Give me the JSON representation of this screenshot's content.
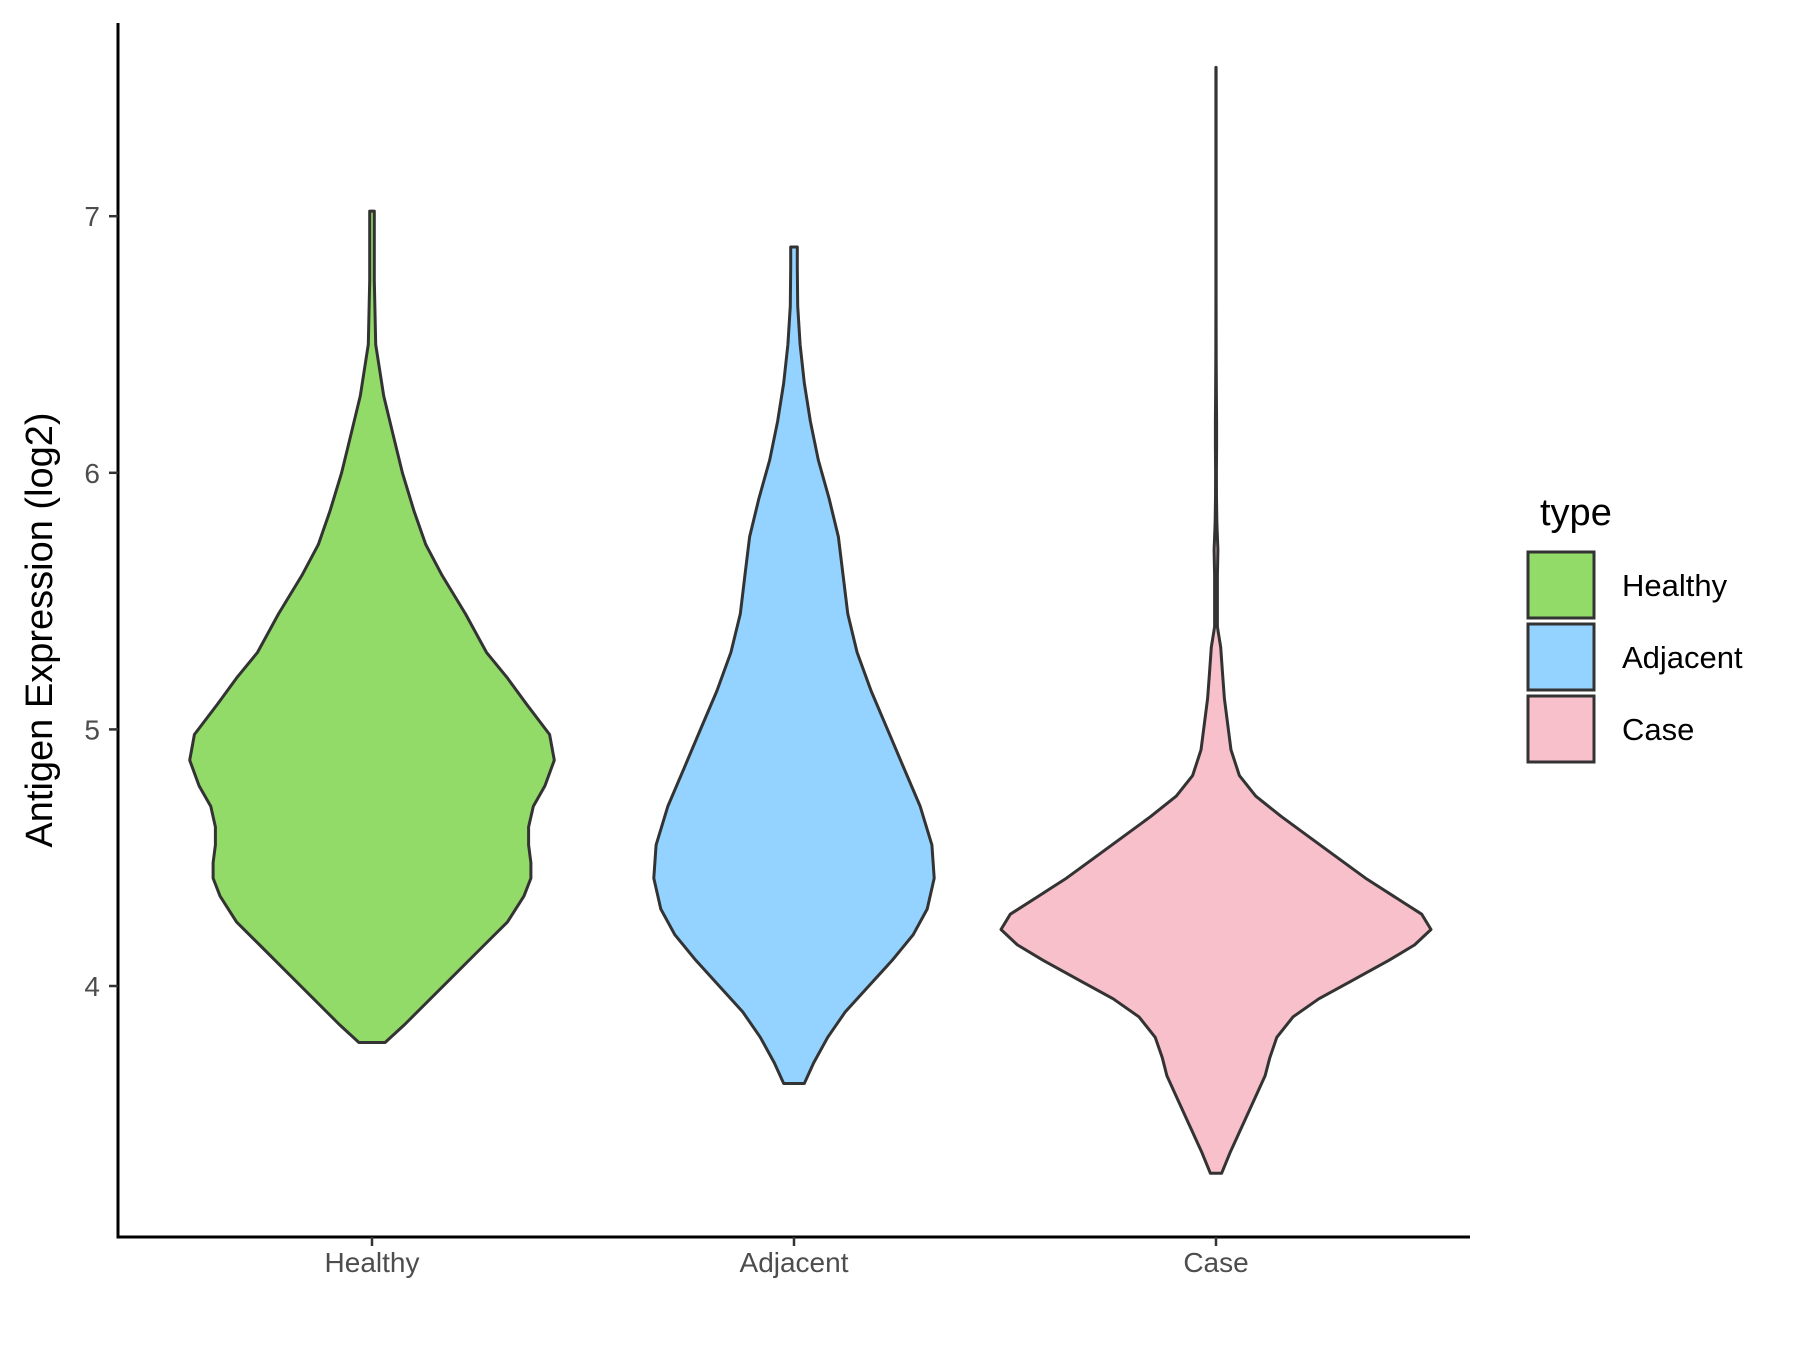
{
  "chart_data": {
    "type": "violin",
    "title": "",
    "xlabel": "",
    "ylabel": "Antigen Expression (log2)",
    "categories": [
      "Healthy",
      "Adjacent",
      "Case"
    ],
    "yticks": [
      4,
      5,
      6,
      7
    ],
    "ylim": [
      3.05,
      7.8
    ],
    "grid": false,
    "legend": {
      "title": "type",
      "position": "right",
      "entries": [
        {
          "label": "Healthy",
          "color": "#93db69"
        },
        {
          "label": "Adjacent",
          "color": "#94d3ff"
        },
        {
          "label": "Case",
          "color": "#f7c0cb"
        }
      ]
    },
    "series": [
      {
        "category": "Healthy",
        "color": "#93db69",
        "density": [
          [
            3.78,
            0.028
          ],
          [
            3.85,
            0.07
          ],
          [
            3.95,
            0.125
          ],
          [
            4.05,
            0.18
          ],
          [
            4.15,
            0.235
          ],
          [
            4.25,
            0.29
          ],
          [
            4.35,
            0.325
          ],
          [
            4.42,
            0.34
          ],
          [
            4.48,
            0.34
          ],
          [
            4.55,
            0.335
          ],
          [
            4.62,
            0.335
          ],
          [
            4.7,
            0.345
          ],
          [
            4.78,
            0.37
          ],
          [
            4.88,
            0.39
          ],
          [
            4.98,
            0.38
          ],
          [
            5.1,
            0.33
          ],
          [
            5.2,
            0.29
          ],
          [
            5.3,
            0.245
          ],
          [
            5.45,
            0.2
          ],
          [
            5.6,
            0.15
          ],
          [
            5.72,
            0.115
          ],
          [
            5.85,
            0.09
          ],
          [
            6.0,
            0.065
          ],
          [
            6.15,
            0.045
          ],
          [
            6.3,
            0.025
          ],
          [
            6.5,
            0.008
          ],
          [
            6.75,
            0.005
          ],
          [
            7.02,
            0.005
          ]
        ]
      },
      {
        "category": "Adjacent",
        "color": "#94d3ff",
        "density": [
          [
            3.62,
            0.022
          ],
          [
            3.7,
            0.042
          ],
          [
            3.8,
            0.072
          ],
          [
            3.9,
            0.11
          ],
          [
            4.0,
            0.16
          ],
          [
            4.1,
            0.21
          ],
          [
            4.2,
            0.255
          ],
          [
            4.3,
            0.285
          ],
          [
            4.42,
            0.3
          ],
          [
            4.55,
            0.295
          ],
          [
            4.7,
            0.27
          ],
          [
            4.85,
            0.235
          ],
          [
            5.0,
            0.2
          ],
          [
            5.15,
            0.165
          ],
          [
            5.3,
            0.135
          ],
          [
            5.45,
            0.115
          ],
          [
            5.6,
            0.105
          ],
          [
            5.75,
            0.095
          ],
          [
            5.9,
            0.075
          ],
          [
            6.05,
            0.052
          ],
          [
            6.2,
            0.035
          ],
          [
            6.35,
            0.022
          ],
          [
            6.5,
            0.013
          ],
          [
            6.65,
            0.008
          ],
          [
            6.8,
            0.007
          ],
          [
            6.88,
            0.007
          ]
        ]
      },
      {
        "category": "Case",
        "color": "#f7c0cb",
        "density": [
          [
            3.27,
            0.012
          ],
          [
            3.35,
            0.03
          ],
          [
            3.45,
            0.055
          ],
          [
            3.55,
            0.08
          ],
          [
            3.65,
            0.105
          ],
          [
            3.72,
            0.115
          ],
          [
            3.8,
            0.13
          ],
          [
            3.88,
            0.165
          ],
          [
            3.95,
            0.22
          ],
          [
            4.02,
            0.29
          ],
          [
            4.1,
            0.37
          ],
          [
            4.16,
            0.425
          ],
          [
            4.22,
            0.46
          ],
          [
            4.28,
            0.44
          ],
          [
            4.35,
            0.38
          ],
          [
            4.42,
            0.32
          ],
          [
            4.5,
            0.26
          ],
          [
            4.58,
            0.2
          ],
          [
            4.66,
            0.14
          ],
          [
            4.74,
            0.085
          ],
          [
            4.82,
            0.05
          ],
          [
            4.92,
            0.032
          ],
          [
            5.02,
            0.025
          ],
          [
            5.12,
            0.018
          ],
          [
            5.22,
            0.014
          ],
          [
            5.32,
            0.01
          ],
          [
            5.4,
            0.003
          ],
          [
            5.5,
            0.003
          ],
          [
            5.6,
            0.003
          ],
          [
            5.7,
            0.004
          ],
          [
            5.8,
            0.002
          ],
          [
            5.9,
            0.001
          ],
          [
            6.0,
            0.0008
          ],
          [
            6.1,
            0.0012
          ],
          [
            6.2,
            0.0012
          ],
          [
            6.3,
            0.0008
          ],
          [
            6.45,
            0.0004
          ],
          [
            6.7,
            0.0002
          ],
          [
            7.2,
            0.0002
          ],
          [
            7.58,
            0.0002
          ]
        ]
      }
    ]
  }
}
